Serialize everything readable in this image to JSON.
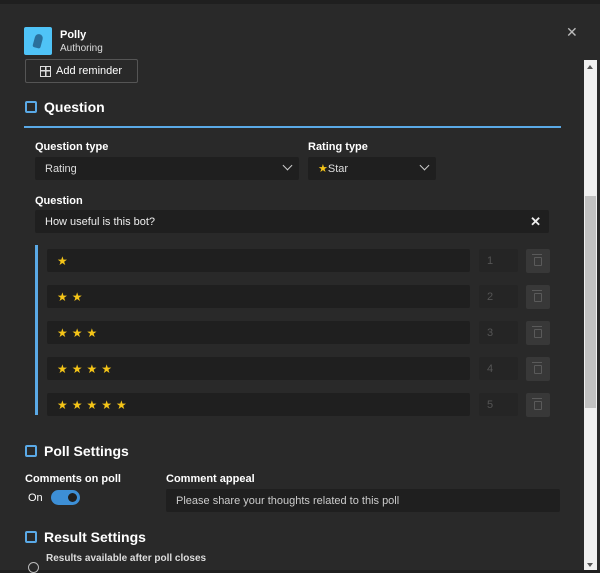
{
  "header": {
    "app_name": "Polly",
    "subtitle": "Authoring",
    "add_reminder": "Add reminder",
    "close_icon": "close-icon"
  },
  "question_section": {
    "title": "Question",
    "question_type_label": "Question type",
    "question_type_value": "Rating",
    "rating_type_label": "Rating type",
    "rating_type_value": "Star",
    "rating_type_star": "★",
    "question_label": "Question",
    "question_value": "How useful is this bot?",
    "clear": "✕",
    "options": [
      {
        "stars": "★",
        "value": "1"
      },
      {
        "stars": "★★",
        "value": "2"
      },
      {
        "stars": "★★★",
        "value": "3"
      },
      {
        "stars": "★★★★",
        "value": "4"
      },
      {
        "stars": "★★★★★",
        "value": "5"
      }
    ]
  },
  "poll_settings": {
    "title": "Poll Settings",
    "comments_label": "Comments on poll",
    "toggle_state": "On",
    "toggle_on": true,
    "appeal_label": "Comment appeal",
    "appeal_placeholder": "Please share your thoughts related to this poll"
  },
  "result_settings": {
    "title": "Result Settings",
    "option1": "Results available after poll closes"
  },
  "colors": {
    "accent": "#5aa9e6",
    "star": "#f5c518",
    "toggle": "#3d8fd6"
  }
}
